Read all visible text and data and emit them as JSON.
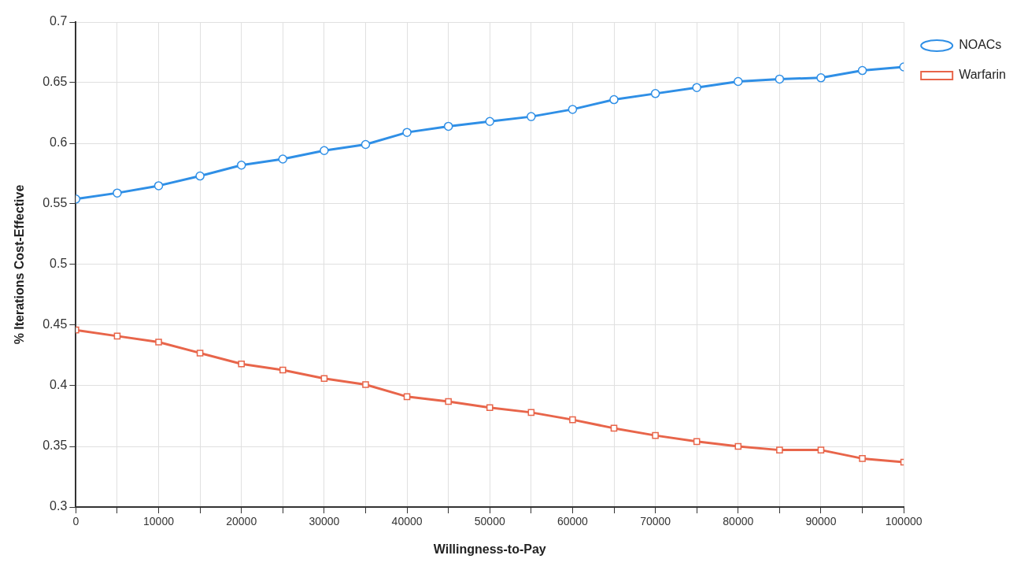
{
  "chart_data": {
    "type": "line",
    "xlabel": "Willingness-to-Pay",
    "ylabel": "% Iterations Cost-Effective",
    "x": [
      0,
      5000,
      10000,
      15000,
      20000,
      25000,
      30000,
      35000,
      40000,
      45000,
      50000,
      55000,
      60000,
      65000,
      70000,
      75000,
      80000,
      85000,
      90000,
      95000,
      100000
    ],
    "series": [
      {
        "name": "NOACs",
        "color": "#2f8fe6",
        "marker": "circle",
        "values": [
          0.554,
          0.559,
          0.565,
          0.573,
          0.582,
          0.587,
          0.594,
          0.599,
          0.609,
          0.614,
          0.618,
          0.622,
          0.628,
          0.636,
          0.641,
          0.646,
          0.651,
          0.653,
          0.654,
          0.66,
          0.663
        ]
      },
      {
        "name": "Warfarin",
        "color": "#e8654a",
        "marker": "square",
        "values": [
          0.446,
          0.441,
          0.436,
          0.427,
          0.418,
          0.413,
          0.406,
          0.401,
          0.391,
          0.387,
          0.382,
          0.378,
          0.372,
          0.365,
          0.359,
          0.354,
          0.35,
          0.347,
          0.347,
          0.34,
          0.337
        ]
      }
    ],
    "xlim": [
      0,
      100000
    ],
    "xticks": [
      0,
      {
        "value": 5000,
        "label": null
      },
      10000,
      {
        "value": 15000,
        "label": null
      },
      20000,
      {
        "value": 25000,
        "label": null
      },
      30000,
      {
        "value": 35000,
        "label": null
      },
      40000,
      {
        "value": 45000,
        "label": null
      },
      50000,
      {
        "value": 55000,
        "label": null
      },
      60000,
      {
        "value": 65000,
        "label": null
      },
      70000,
      {
        "value": 75000,
        "label": null
      },
      80000,
      {
        "value": 85000,
        "label": null
      },
      90000,
      {
        "value": 95000,
        "label": null
      },
      100000
    ],
    "ylim": [
      0.3,
      0.7
    ],
    "yticks": [
      0.3,
      0.35,
      0.4,
      0.45,
      0.5,
      0.55,
      0.6,
      0.65,
      0.7
    ],
    "grid": true,
    "legend": "top right",
    "line_style": "solid"
  }
}
